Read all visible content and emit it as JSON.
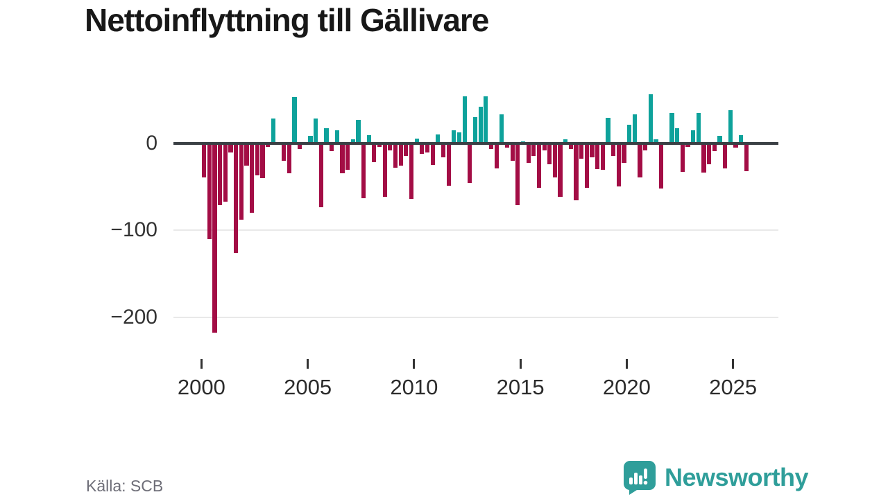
{
  "title": "Nettoinflyttning till Gällivare",
  "source": "Källa: SCB",
  "logo": {
    "text": "Newsworthy",
    "icon": "newsworthy-speech-bubble-chart-icon"
  },
  "colors": {
    "positive_bar": "#0ea29b",
    "negative_bar": "#a30d45",
    "axis": "#3b4045",
    "grid": "#e9e9e9",
    "tick_text": "#333333",
    "muted_text": "#6e6e78",
    "logo_teal": "#2f9e9a",
    "title_text": "#181818"
  },
  "chart_data": {
    "type": "bar",
    "title": "Nettoinflyttning till Gällivare",
    "xlabel": "",
    "ylabel": "",
    "frequency": "quarterly",
    "start": {
      "year": 2000,
      "quarter": 1
    },
    "end": {
      "year": 2025,
      "quarter": 3
    },
    "values": [
      -39,
      -110,
      -218,
      -71,
      -67,
      -11,
      -126,
      -88,
      -26,
      -80,
      -37,
      -40,
      -4,
      28,
      0,
      -20,
      -35,
      53,
      -7,
      0,
      8,
      28,
      -74,
      17,
      -9,
      15,
      -35,
      -31,
      4,
      27,
      -63,
      9,
      -22,
      -4,
      -62,
      -8,
      -28,
      -26,
      -15,
      -64,
      5,
      -12,
      -11,
      -25,
      10,
      -16,
      -49,
      15,
      12,
      54,
      -46,
      30,
      42,
      54,
      -7,
      -29,
      33,
      -5,
      -20,
      -71,
      2,
      -23,
      -15,
      -51,
      -8,
      -24,
      -39,
      -62,
      4,
      -7,
      -66,
      -18,
      -51,
      -16,
      -30,
      -31,
      29,
      -15,
      -50,
      -23,
      21,
      33,
      -39,
      -8,
      56,
      4,
      -52,
      0,
      35,
      17,
      -33,
      -4,
      15,
      35,
      -34,
      -24,
      -9,
      8,
      -29,
      38,
      -5,
      9,
      -32
    ],
    "x_ticks": [
      2000,
      2005,
      2010,
      2015,
      2020,
      2025
    ],
    "y_ticks": [
      {
        "value": 0,
        "label": "0"
      },
      {
        "value": -100,
        "label": "−100"
      },
      {
        "value": -200,
        "label": "−200"
      }
    ],
    "ylim": [
      -230,
      60
    ],
    "grid": "horizontal-below-zero",
    "legend": "none",
    "positive_color": "#0ea29b",
    "negative_color": "#a30d45"
  }
}
